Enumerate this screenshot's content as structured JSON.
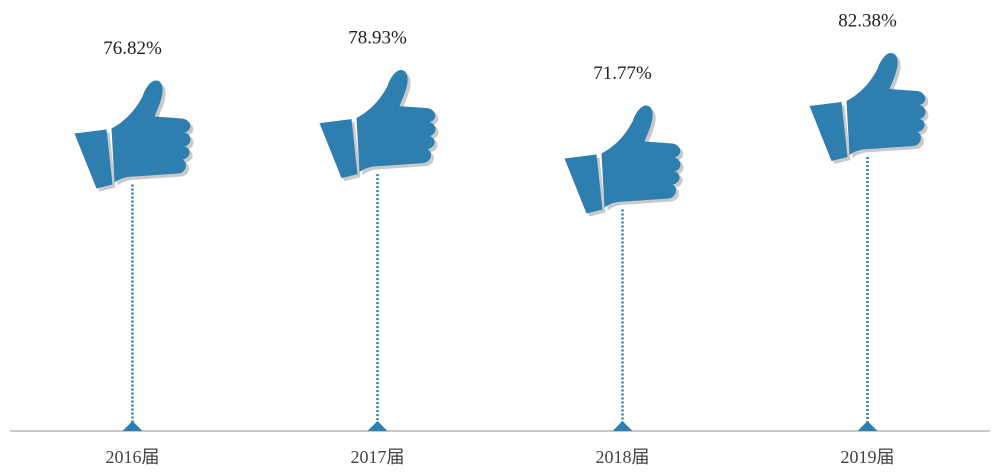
{
  "chart_data": {
    "type": "pictograph",
    "categories": [
      "2016届",
      "2017届",
      "2018届",
      "2019届"
    ],
    "values": [
      76.82,
      78.93,
      71.77,
      82.38
    ],
    "value_labels": [
      "76.82%",
      "78.93%",
      "71.77%",
      "82.38%"
    ],
    "color": "#2e7fb0"
  }
}
